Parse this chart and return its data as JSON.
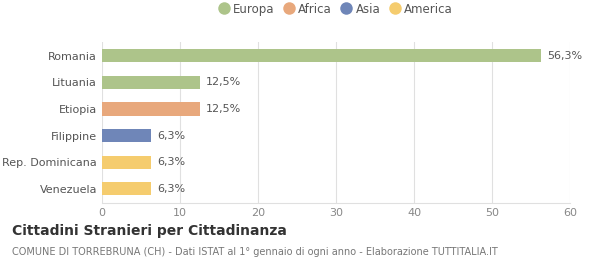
{
  "categories": [
    "Venezuela",
    "Rep. Dominicana",
    "Filippine",
    "Etiopia",
    "Lituania",
    "Romania"
  ],
  "values": [
    6.3,
    6.3,
    6.3,
    12.5,
    12.5,
    56.3
  ],
  "labels": [
    "6,3%",
    "6,3%",
    "6,3%",
    "12,5%",
    "12,5%",
    "56,3%"
  ],
  "colors": [
    "#f5cc6e",
    "#f5cc6e",
    "#6f86b8",
    "#e8a87c",
    "#adc48a",
    "#adc48a"
  ],
  "legend": [
    {
      "label": "Europa",
      "color": "#adc48a"
    },
    {
      "label": "Africa",
      "color": "#e8a87c"
    },
    {
      "label": "Asia",
      "color": "#6f86b8"
    },
    {
      "label": "America",
      "color": "#f5cc6e"
    }
  ],
  "xlim": [
    0,
    60
  ],
  "xticks": [
    0,
    10,
    20,
    30,
    40,
    50,
    60
  ],
  "title_bold": "Cittadini Stranieri per Cittadinanza",
  "subtitle": "COMUNE DI TORREBRUNA (CH) - Dati ISTAT al 1° gennaio di ogni anno - Elaborazione TUTTITALIA.IT",
  "background_color": "#ffffff",
  "grid_color": "#e0e0e0",
  "bar_height": 0.5,
  "label_fontsize": 8.0,
  "tick_fontsize": 8.0,
  "legend_fontsize": 8.5,
  "title_fontsize": 10.0,
  "subtitle_fontsize": 7.0
}
